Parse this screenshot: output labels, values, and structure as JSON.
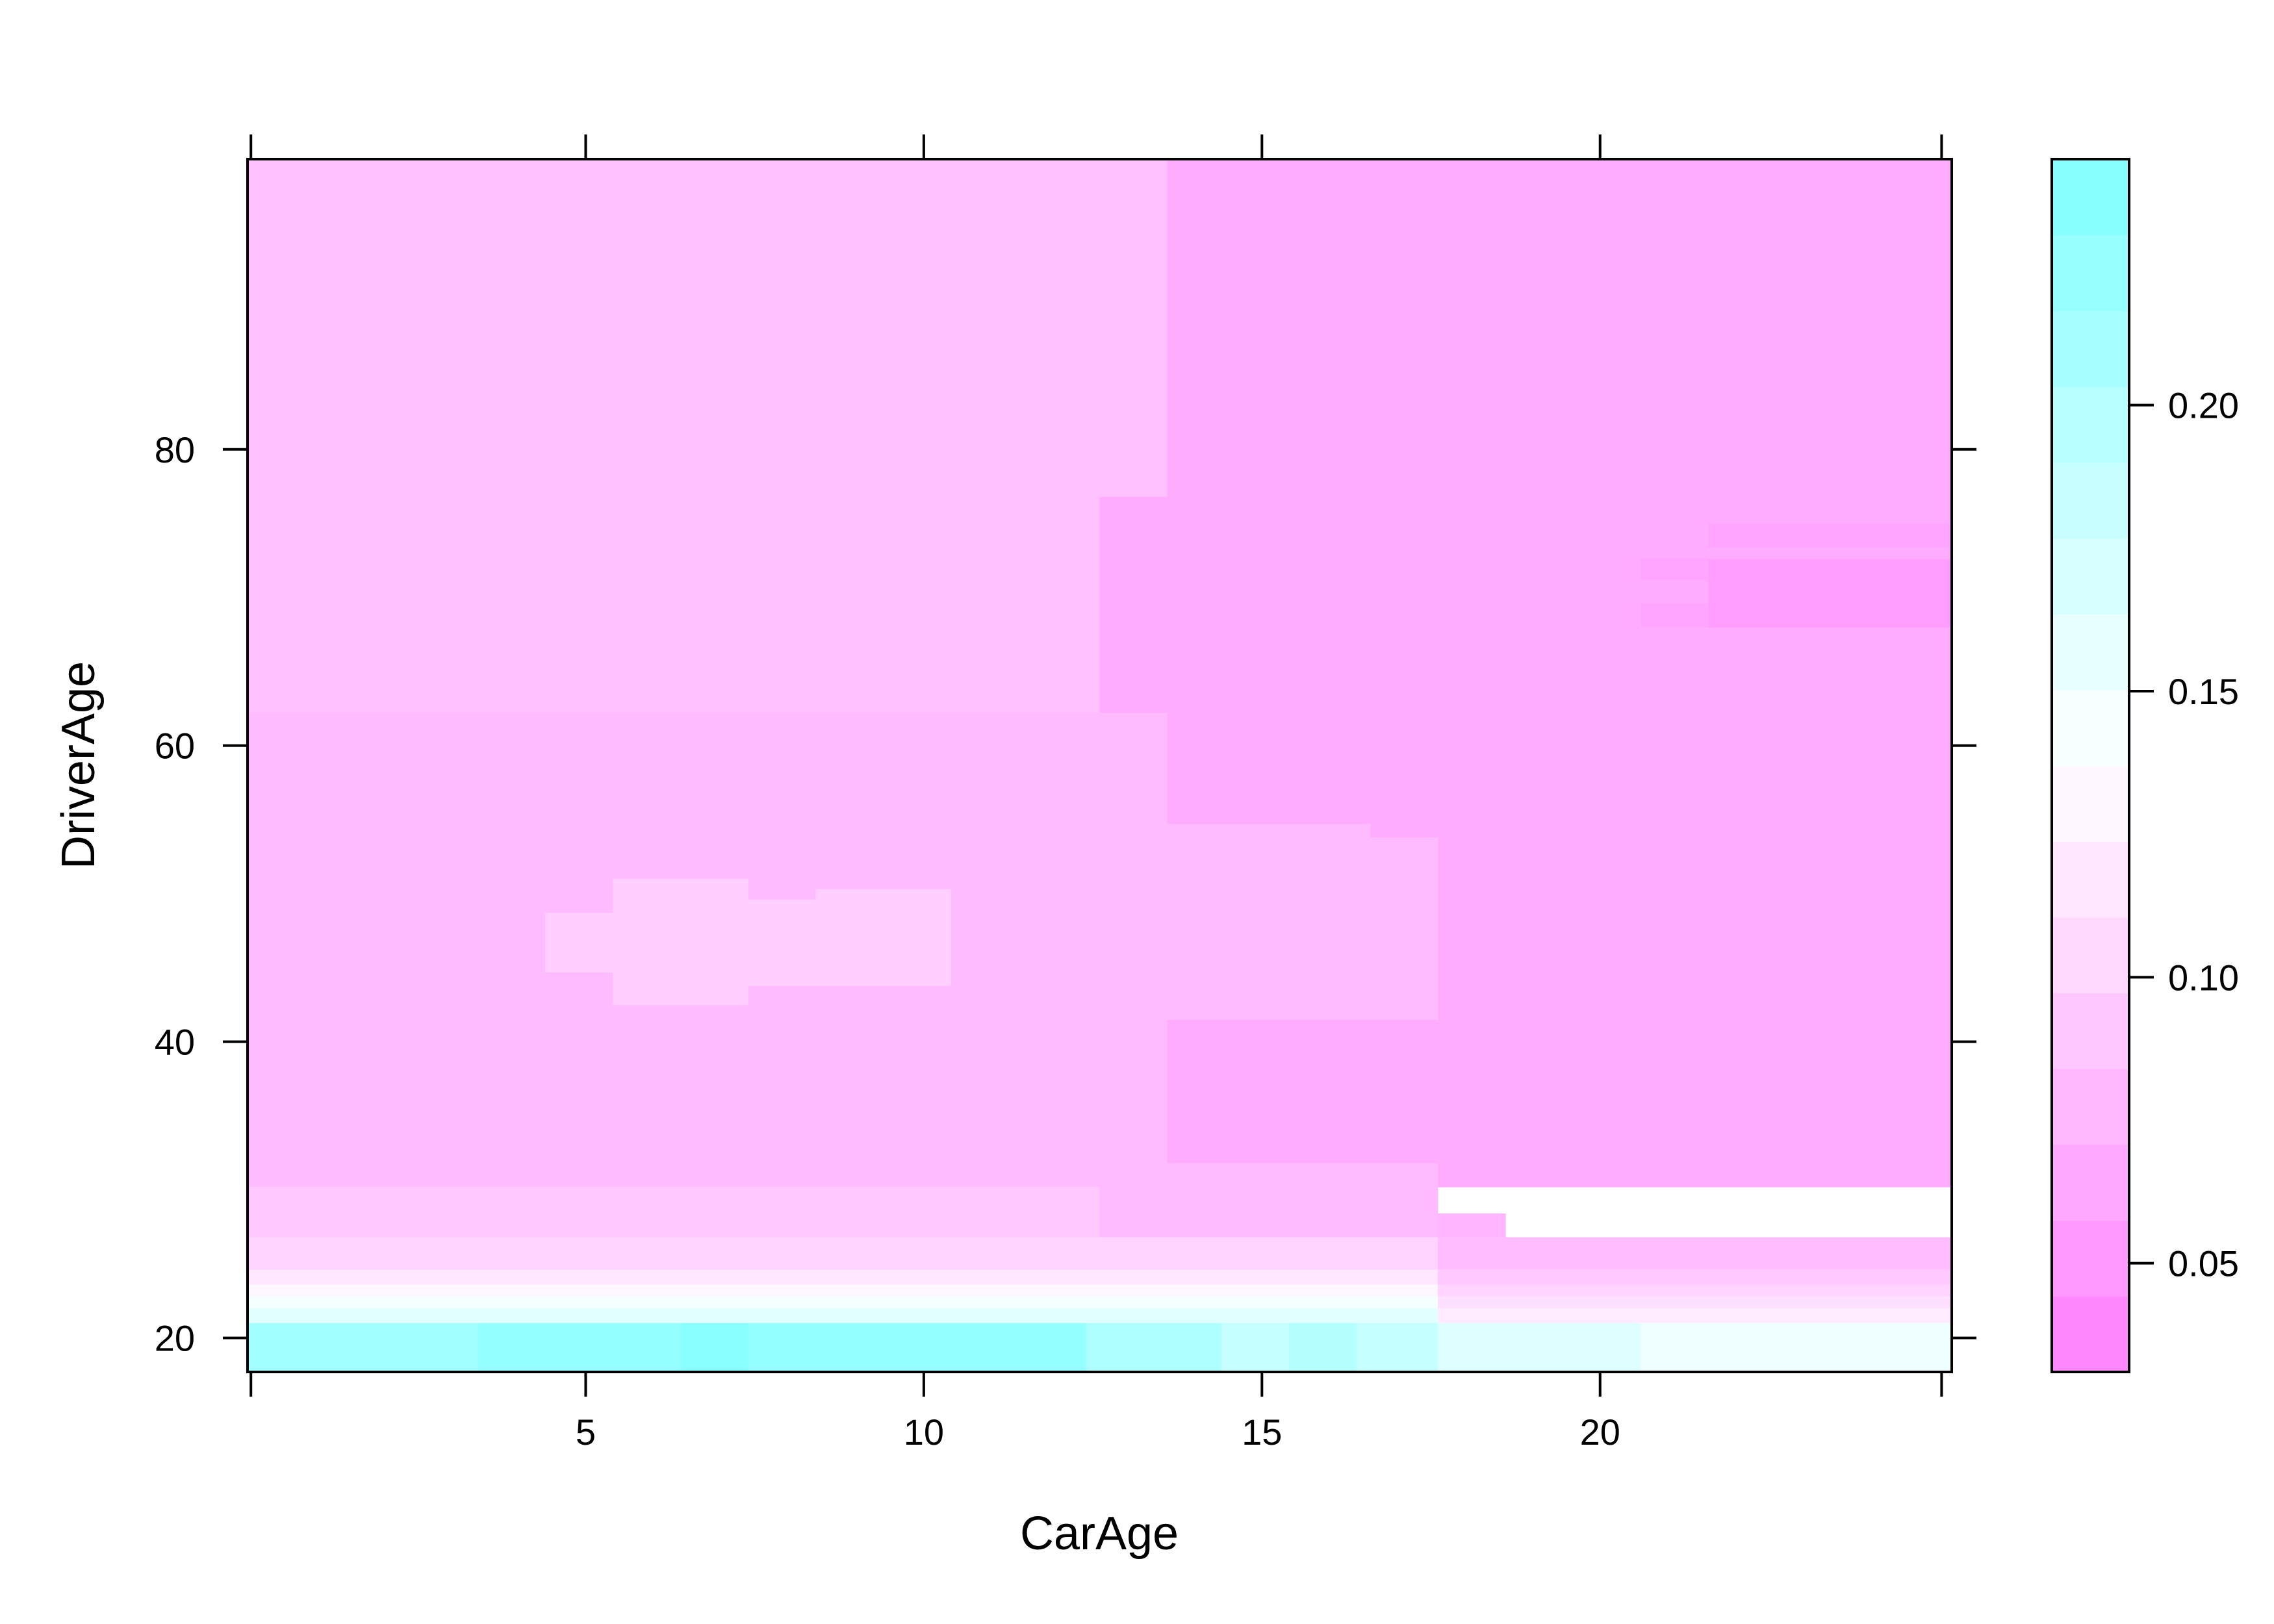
{
  "chart_data": {
    "type": "heatmap",
    "title": "",
    "xlabel": "CarAge",
    "ylabel": "DriverAge",
    "xlim": [
      0,
      25.2
    ],
    "ylim": [
      17.7,
      99.6
    ],
    "xticks": [
      5,
      10,
      15,
      20
    ],
    "yticks": [
      20,
      40,
      60,
      80
    ],
    "colorbar": {
      "ticks": [
        0.05,
        0.1,
        0.15,
        0.2
      ],
      "tick_labels": [
        "0.05",
        "0.10",
        "0.15",
        "0.20"
      ],
      "range": [
        0.031,
        0.243
      ],
      "low_color": "#ff80ff",
      "high_color": "#80ffff",
      "levels": 16
    },
    "grid": false,
    "regions": [
      {
        "x": [
          0,
          13.6
        ],
        "y": [
          76.8,
          99.6
        ],
        "value": 0.085
      },
      {
        "x": [
          13.6,
          25.2
        ],
        "y": [
          76.8,
          99.6
        ],
        "value": 0.068
      },
      {
        "x": [
          0,
          12.6
        ],
        "y": [
          62.2,
          76.8
        ],
        "value": 0.085
      },
      {
        "x": [
          12.6,
          25.2
        ],
        "y": [
          62.2,
          76.8
        ],
        "value": 0.068
      },
      {
        "x": [
          0,
          13.6
        ],
        "y": [
          30.2,
          62.2
        ],
        "value": 0.08
      },
      {
        "x": [
          13.6,
          25.2
        ],
        "y": [
          30.2,
          62.2
        ],
        "value": 0.068
      },
      {
        "x": [
          13.6,
          16.6
        ],
        "y": [
          41.5,
          54.7
        ],
        "value": 0.08
      },
      {
        "x": [
          16.6,
          17.6
        ],
        "y": [
          41.5,
          53.8
        ],
        "value": 0.08
      },
      {
        "x": [
          4.4,
          5.4
        ],
        "y": [
          44.7,
          48.7
        ],
        "value": 0.098
      },
      {
        "x": [
          5.4,
          7.4
        ],
        "y": [
          42.5,
          51.0
        ],
        "value": 0.098
      },
      {
        "x": [
          7.4,
          8.4
        ],
        "y": [
          43.8,
          49.6
        ],
        "value": 0.098
      },
      {
        "x": [
          8.4,
          10.4
        ],
        "y": [
          43.8,
          50.3
        ],
        "value": 0.098
      },
      {
        "x": [
          21.6,
          25.2
        ],
        "y": [
          73.4,
          75.0
        ],
        "value": 0.062
      },
      {
        "x": [
          20.6,
          21.6
        ],
        "y": [
          71.2,
          72.6
        ],
        "value": 0.062
      },
      {
        "x": [
          21.6,
          25.2
        ],
        "y": [
          68.0,
          72.6
        ],
        "value": 0.056
      },
      {
        "x": [
          20.6,
          21.6
        ],
        "y": [
          68.0,
          69.6
        ],
        "value": 0.062
      },
      {
        "x": [
          0,
          12.6
        ],
        "y": [
          26.8,
          30.2
        ],
        "value": 0.092
      },
      {
        "x": [
          12.6,
          17.6
        ],
        "y": [
          26.8,
          31.8
        ],
        "value": 0.08
      },
      {
        "x": [
          17.6,
          18.6
        ],
        "y": [
          26.8,
          28.4
        ],
        "value": 0.075
      },
      {
        "x": [
          0,
          25.2
        ],
        "y": [
          24.6,
          26.8
        ],
        "value": 0.102
      },
      {
        "x": [
          17.6,
          25.2
        ],
        "y": [
          24.6,
          26.8
        ],
        "value": 0.082
      },
      {
        "x": [
          0,
          25.2
        ],
        "y": [
          23.6,
          24.6
        ],
        "value": 0.118
      },
      {
        "x": [
          17.6,
          25.2
        ],
        "y": [
          23.6,
          24.6
        ],
        "value": 0.092
      },
      {
        "x": [
          0,
          25.2
        ],
        "y": [
          22.8,
          23.6
        ],
        "value": 0.13
      },
      {
        "x": [
          17.6,
          25.2
        ],
        "y": [
          22.8,
          23.6
        ],
        "value": 0.102
      },
      {
        "x": [
          0,
          25.2
        ],
        "y": [
          22.0,
          22.8
        ],
        "value": 0.145
      },
      {
        "x": [
          17.6,
          25.2
        ],
        "y": [
          22.0,
          22.8
        ],
        "value": 0.11
      },
      {
        "x": [
          0,
          25.2
        ],
        "y": [
          21.0,
          22.0
        ],
        "value": 0.162
      },
      {
        "x": [
          17.6,
          25.2
        ],
        "y": [
          21.0,
          22.0
        ],
        "value": 0.12
      },
      {
        "x": [
          0,
          3.4
        ],
        "y": [
          17.7,
          21.0
        ],
        "value": 0.215
      },
      {
        "x": [
          3.4,
          6.4
        ],
        "y": [
          17.7,
          21.0
        ],
        "value": 0.225
      },
      {
        "x": [
          6.4,
          7.4
        ],
        "y": [
          17.7,
          21.0
        ],
        "value": 0.235
      },
      {
        "x": [
          7.4,
          12.4
        ],
        "y": [
          17.7,
          21.0
        ],
        "value": 0.225
      },
      {
        "x": [
          12.4,
          14.4
        ],
        "y": [
          17.7,
          21.0
        ],
        "value": 0.205
      },
      {
        "x": [
          14.4,
          15.4
        ],
        "y": [
          17.7,
          21.0
        ],
        "value": 0.185
      },
      {
        "x": [
          15.4,
          16.4
        ],
        "y": [
          17.7,
          21.0
        ],
        "value": 0.2
      },
      {
        "x": [
          16.4,
          17.6
        ],
        "y": [
          17.7,
          21.0
        ],
        "value": 0.185
      },
      {
        "x": [
          17.6,
          20.6
        ],
        "y": [
          17.7,
          21.0
        ],
        "value": 0.165
      },
      {
        "x": [
          20.6,
          25.2
        ],
        "y": [
          17.7,
          21.0
        ],
        "value": 0.15
      }
    ]
  }
}
